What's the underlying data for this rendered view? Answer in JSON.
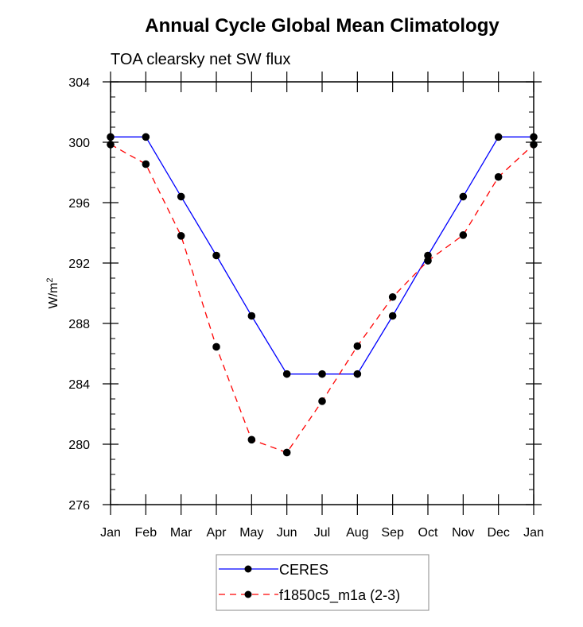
{
  "chart_data": {
    "type": "line",
    "title": "Annual Cycle Global Mean Climatology",
    "subtitle": "TOA clearsky net SW flux",
    "xlabel": "",
    "ylabel": "W/m",
    "ylabel_superscript": "2",
    "ylim": [
      276,
      304
    ],
    "yticks": [
      276,
      280,
      284,
      288,
      292,
      296,
      300,
      304
    ],
    "y_minor_step": 1,
    "categories": [
      "Jan",
      "Feb",
      "Mar",
      "Apr",
      "May",
      "Jun",
      "Jul",
      "Aug",
      "Sep",
      "Oct",
      "Nov",
      "Dec",
      "Jan"
    ],
    "grid": false,
    "legend_position": "bottom-center",
    "series": [
      {
        "name": "CERES",
        "color": "#0000ff",
        "dash": "solid",
        "marker": "filled-circle",
        "marker_color": "#000000",
        "values": [
          300.35,
          300.35,
          296.4,
          292.5,
          288.5,
          284.65,
          284.65,
          284.65,
          288.5,
          292.5,
          296.4,
          300.35,
          300.35
        ]
      },
      {
        "name": "f1850c5_m1a (2-3)",
        "color": "#ff0000",
        "dash": "dashed",
        "marker": "filled-circle",
        "marker_color": "#000000",
        "values": [
          299.85,
          298.55,
          293.8,
          286.45,
          280.3,
          279.45,
          282.85,
          286.5,
          289.75,
          292.15,
          293.85,
          297.7,
          299.85
        ]
      }
    ]
  }
}
